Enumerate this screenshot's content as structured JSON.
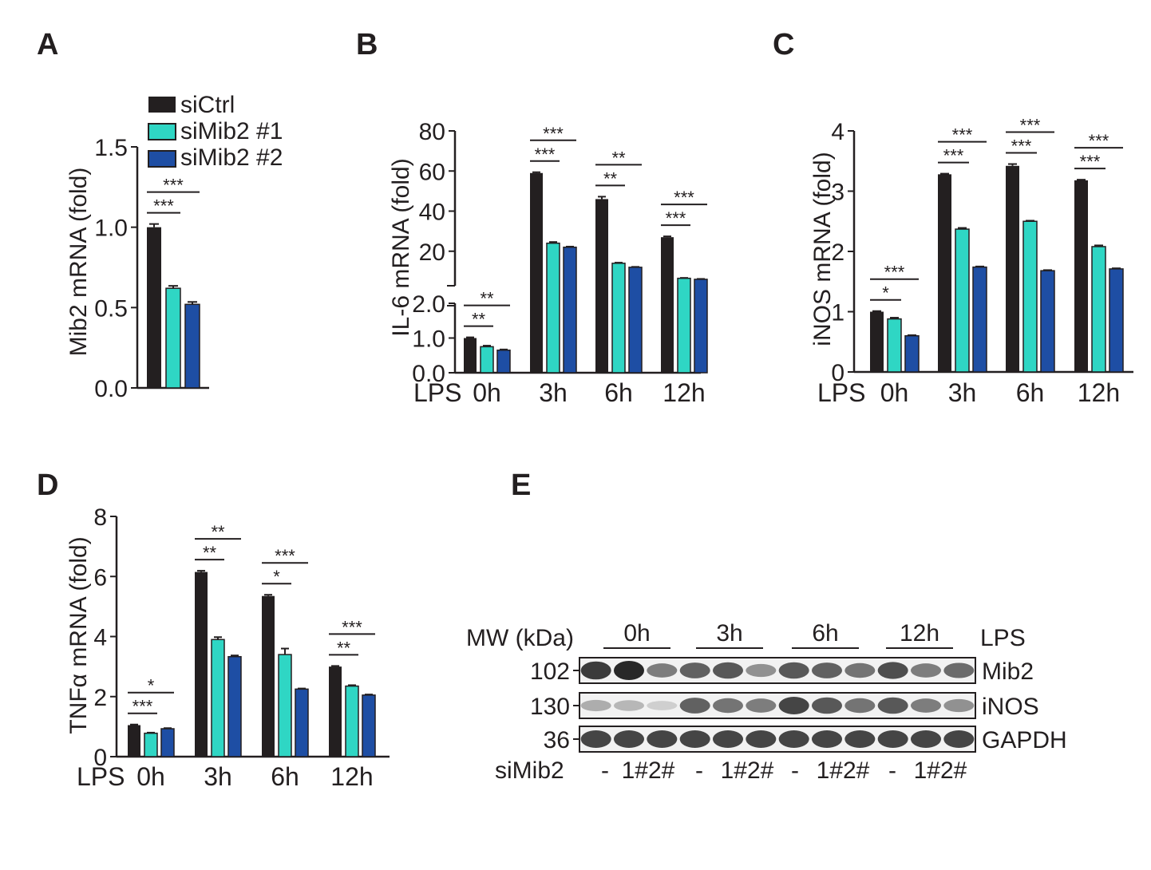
{
  "colors": {
    "siCtrl": "#231f20",
    "siMib2_1": "#2fd6c4",
    "siMib2_2": "#1e4ea4",
    "axis": "#231f20"
  },
  "legend": [
    "siCtrl",
    "siMib2 #1",
    "siMib2 #2"
  ],
  "chart_data": [
    {
      "id": "A",
      "type": "bar",
      "panel_label": "A",
      "ylabel": "Mib2 mRNA (fold)",
      "ylim": [
        0,
        1.5
      ],
      "yticks": [
        "0.0",
        "0.5",
        "1.0",
        "1.5"
      ],
      "categories": [
        ""
      ],
      "series": [
        {
          "name": "siCtrl",
          "values": [
            1.0
          ],
          "errors": [
            0.02
          ]
        },
        {
          "name": "siMib2 #1",
          "values": [
            0.62
          ],
          "errors": [
            0.015
          ]
        },
        {
          "name": "siMib2 #2",
          "values": [
            0.52
          ],
          "errors": [
            0.015
          ]
        }
      ],
      "significance": [
        [
          {
            "pair": [
              0,
              1
            ],
            "label": "***"
          },
          {
            "pair": [
              0,
              2
            ],
            "label": "***"
          }
        ]
      ]
    },
    {
      "id": "B",
      "type": "bar",
      "panel_label": "B",
      "ylabel": "IL-6 mRNA (fold)",
      "axis_break": true,
      "ylim_lower": [
        0,
        2.0
      ],
      "yticks_lower": [
        "0.0",
        "1.0",
        "2.0"
      ],
      "ylim_upper": [
        0,
        80
      ],
      "yticks_upper": [
        "20",
        "40",
        "60",
        "80"
      ],
      "xprefix": "LPS",
      "categories": [
        "0h",
        "3h",
        "6h",
        "12h"
      ],
      "series": [
        {
          "name": "siCtrl",
          "values": [
            1.0,
            59,
            46,
            27
          ],
          "errors": [
            0.02,
            0.4,
            1.2,
            0.4
          ]
        },
        {
          "name": "siMib2 #1",
          "values": [
            0.75,
            24,
            14,
            6.5
          ],
          "errors": [
            0.03,
            0.6,
            0.3,
            0.2
          ]
        },
        {
          "name": "siMib2 #2",
          "values": [
            0.65,
            22,
            12,
            6
          ],
          "errors": [
            0.02,
            0.3,
            0.2,
            0.2
          ]
        }
      ],
      "significance": [
        [
          {
            "pair": [
              0,
              1
            ],
            "label": "**"
          },
          {
            "pair": [
              0,
              2
            ],
            "label": "**"
          }
        ],
        [
          {
            "pair": [
              0,
              1
            ],
            "label": "***"
          },
          {
            "pair": [
              0,
              2
            ],
            "label": "***"
          }
        ],
        [
          {
            "pair": [
              0,
              1
            ],
            "label": "**"
          },
          {
            "pair": [
              0,
              2
            ],
            "label": "**"
          }
        ],
        [
          {
            "pair": [
              0,
              1
            ],
            "label": "***"
          },
          {
            "pair": [
              0,
              2
            ],
            "label": "***"
          }
        ]
      ]
    },
    {
      "id": "C",
      "type": "bar",
      "panel_label": "C",
      "ylabel": "iNOS mRNA (fold)",
      "ylim": [
        0,
        4
      ],
      "yticks": [
        "0",
        "1",
        "2",
        "3",
        "4"
      ],
      "xprefix": "LPS",
      "categories": [
        "0h",
        "3h",
        "6h",
        "12h"
      ],
      "series": [
        {
          "name": "siCtrl",
          "values": [
            1.0,
            3.28,
            3.42,
            3.18
          ],
          "errors": [
            0.01,
            0.01,
            0.03,
            0.01
          ]
        },
        {
          "name": "siMib2 #1",
          "values": [
            0.88,
            2.37,
            2.5,
            2.08
          ],
          "errors": [
            0.02,
            0.02,
            0.01,
            0.02
          ]
        },
        {
          "name": "siMib2 #2",
          "values": [
            0.6,
            1.74,
            1.68,
            1.71
          ],
          "errors": [
            0.01,
            0.01,
            0.01,
            0.01
          ]
        }
      ],
      "significance": [
        [
          {
            "pair": [
              0,
              1
            ],
            "label": "*"
          },
          {
            "pair": [
              0,
              2
            ],
            "label": "***"
          }
        ],
        [
          {
            "pair": [
              0,
              1
            ],
            "label": "***"
          },
          {
            "pair": [
              0,
              2
            ],
            "label": "***"
          }
        ],
        [
          {
            "pair": [
              0,
              1
            ],
            "label": "***"
          },
          {
            "pair": [
              0,
              2
            ],
            "label": "***"
          }
        ],
        [
          {
            "pair": [
              0,
              1
            ],
            "label": "***"
          },
          {
            "pair": [
              0,
              2
            ],
            "label": "***"
          }
        ]
      ]
    },
    {
      "id": "D",
      "type": "bar",
      "panel_label": "D",
      "ylabel": "TNFα mRNA (fold)",
      "ylim": [
        0,
        8
      ],
      "yticks": [
        "0",
        "2",
        "4",
        "6",
        "8"
      ],
      "xprefix": "LPS",
      "categories": [
        "0h",
        "3h",
        "6h",
        "12h"
      ],
      "series": [
        {
          "name": "siCtrl",
          "values": [
            1.05,
            6.15,
            5.35,
            3.0
          ],
          "errors": [
            0.02,
            0.04,
            0.04,
            0.02
          ]
        },
        {
          "name": "siMib2 #1",
          "values": [
            0.78,
            3.9,
            3.4,
            2.35
          ],
          "errors": [
            0.02,
            0.08,
            0.2,
            0.03
          ]
        },
        {
          "name": "siMib2 #2",
          "values": [
            0.93,
            3.33,
            2.25,
            2.05
          ],
          "errors": [
            0.02,
            0.04,
            0.02,
            0.02
          ]
        }
      ],
      "significance": [
        [
          {
            "pair": [
              0,
              1
            ],
            "label": "***"
          },
          {
            "pair": [
              0,
              2
            ],
            "label": "*"
          }
        ],
        [
          {
            "pair": [
              0,
              1
            ],
            "label": "**"
          },
          {
            "pair": [
              0,
              2
            ],
            "label": "**"
          }
        ],
        [
          {
            "pair": [
              0,
              1
            ],
            "label": "*"
          },
          {
            "pair": [
              0,
              2
            ],
            "label": "***"
          }
        ],
        [
          {
            "pair": [
              0,
              1
            ],
            "label": "**"
          },
          {
            "pair": [
              0,
              2
            ],
            "label": "***"
          }
        ]
      ]
    }
  ],
  "western": {
    "panel_label": "E",
    "mw_label": "MW (kDa)",
    "time_points": [
      "0h",
      "3h",
      "6h",
      "12h"
    ],
    "lps_label": "LPS",
    "rows": [
      {
        "mw": "102",
        "protein": "Mib2",
        "intensity": [
          0.9,
          1.0,
          0.55,
          0.7,
          0.75,
          0.45,
          0.75,
          0.7,
          0.6,
          0.8,
          0.55,
          0.65
        ]
      },
      {
        "mw": "130",
        "protein": "iNOS",
        "intensity": [
          0.3,
          0.25,
          0.12,
          0.7,
          0.6,
          0.55,
          0.85,
          0.75,
          0.6,
          0.75,
          0.55,
          0.45
        ]
      },
      {
        "mw": "36",
        "protein": "GAPDH",
        "intensity": [
          0.85,
          0.85,
          0.85,
          0.85,
          0.85,
          0.85,
          0.85,
          0.85,
          0.85,
          0.85,
          0.85,
          0.85
        ]
      }
    ],
    "sirna_label": "siMib2",
    "lane_labels": [
      "-",
      "1#2#",
      "-",
      "1#2#",
      "-",
      "1#2#",
      "-",
      "1#2#"
    ]
  }
}
